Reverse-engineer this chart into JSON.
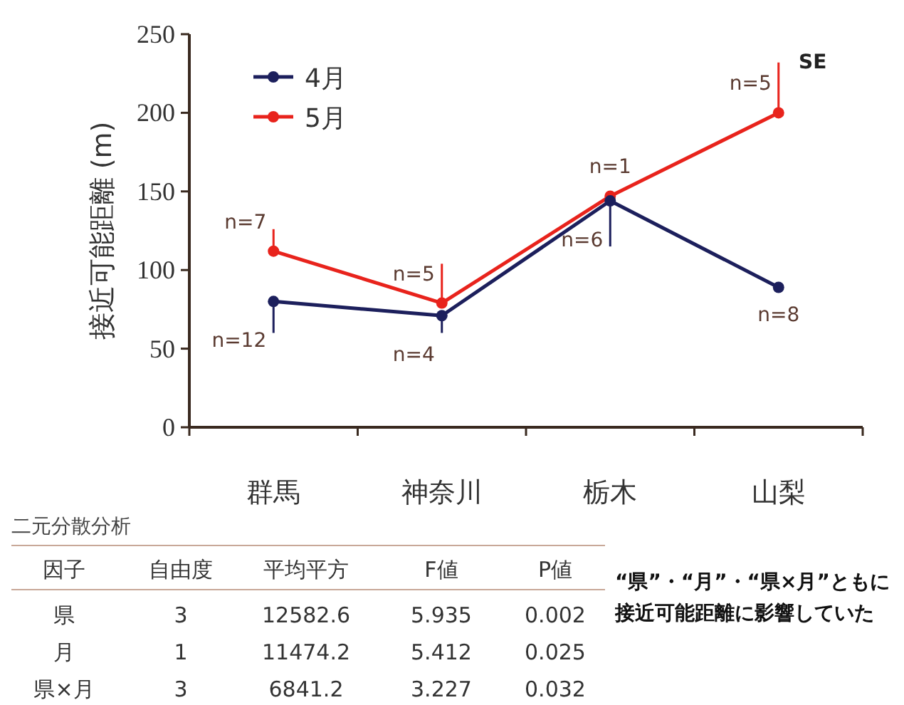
{
  "chart_data": {
    "type": "line",
    "ylabel": "接近可能距離 (m)",
    "categories": [
      "群馬",
      "神奈川",
      "栃木",
      "山梨"
    ],
    "series": [
      {
        "name": "4月",
        "color": "#1c1f5c",
        "values": [
          80,
          71,
          144,
          89
        ],
        "errors": [
          [
            60,
            80
          ],
          [
            60,
            71
          ],
          [
            115,
            144
          ],
          null
        ]
      },
      {
        "name": "5月",
        "color": "#e8231c",
        "values": [
          112,
          79,
          147,
          200
        ],
        "errors": [
          [
            112,
            126
          ],
          [
            79,
            104
          ],
          null,
          [
            200,
            232
          ]
        ]
      }
    ],
    "ylim": [
      0,
      250
    ],
    "yticks": [
      0,
      50,
      100,
      150,
      200,
      250
    ],
    "grid": false,
    "legend": "top left",
    "marker": "circle",
    "line_style": "solid",
    "annotations": [
      {
        "text": "n=12",
        "x": "群馬",
        "y": 80
      },
      {
        "text": "n=7",
        "x": "群馬",
        "y": 112
      },
      {
        "text": "n=4",
        "x": "神奈川",
        "y": 71
      },
      {
        "text": "n=5",
        "x": "神奈川",
        "y": 79
      },
      {
        "text": "n=6",
        "x": "栃木",
        "y": 144
      },
      {
        "text": "n=1",
        "x": "栃木",
        "y": 147
      },
      {
        "text": "n=8",
        "x": "山梨",
        "y": 89
      },
      {
        "text": "n=5",
        "x": "山梨",
        "y": 200
      },
      {
        "text": "SE",
        "x": "山梨",
        "y": 232
      },
      "二元分散分析",
      "因子",
      "自由度",
      "平均平方",
      "F値",
      "P値",
      "県",
      "3",
      "12582.6",
      "5.935",
      "0.002",
      "月",
      "1",
      "11474.2",
      "5.412",
      "0.025",
      "県×月",
      "3",
      "6841.2",
      "3.227",
      "0.032",
      "“県”・“月”・“県×月”ともに接近可能距離に影響していた"
    ]
  }
}
